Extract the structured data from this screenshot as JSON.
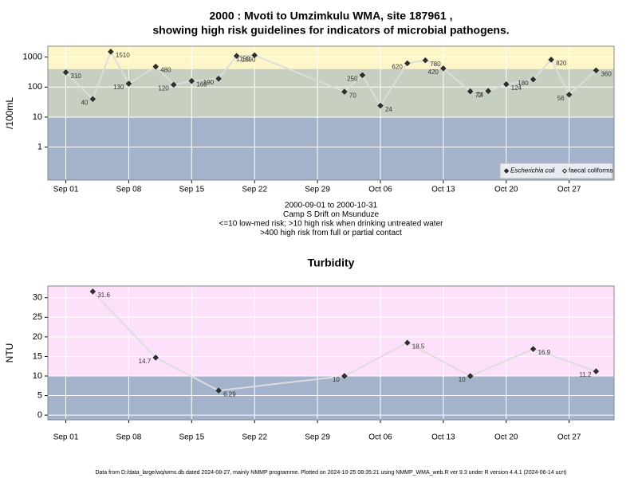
{
  "chart_data": [
    {
      "type": "line",
      "title": "2000 : Mvoti to Umzimkulu WMA, site 187961 ,",
      "subtitle": "showing high risk guidelines for indicators of microbial pathogens.",
      "y_label": "/100mL",
      "caption": [
        "2000-09-01 to 2000-10-31",
        "Camp S Drift on Msunduze",
        "<=10 low-med risk; >10 high risk when drinking untreated water",
        ">400 high risk from full or partial contact"
      ],
      "x": [
        "09-01",
        "09-04",
        "09-06",
        "09-08",
        "09-11",
        "09-13",
        "09-15",
        "09-18",
        "09-20",
        "09-22",
        "10-02",
        "10-04",
        "10-06",
        "10-09",
        "10-11",
        "10-13",
        "10-16",
        "10-18",
        "10-20",
        "10-23",
        "10-25",
        "10-27",
        "10-30"
      ],
      "series": [
        {
          "name": "Escherichia coli",
          "color": "#333333",
          "values": [
            310,
            40,
            1510,
            130,
            480,
            120,
            160,
            190,
            1090,
            1150,
            70,
            250,
            24,
            620,
            780,
            420,
            72,
            74,
            124,
            180,
            820,
            56,
            360
          ]
        },
        {
          "name": "faecal coliforms",
          "color": "#ffffff",
          "values": [
            null,
            null,
            null,
            null,
            null,
            null,
            null,
            null,
            null,
            null,
            null,
            null,
            null,
            null,
            null,
            null,
            null,
            null,
            null,
            null,
            null,
            null,
            null
          ]
        }
      ],
      "xlim": [
        "08-30",
        "11-01"
      ],
      "xticks": [
        {
          "value": "09-01",
          "label": "Sep 01"
        },
        {
          "value": "09-08",
          "label": "Sep 08"
        },
        {
          "value": "09-15",
          "label": "Sep 15"
        },
        {
          "value": "09-22",
          "label": "Sep 22"
        },
        {
          "value": "09-29",
          "label": "Sep 29"
        },
        {
          "value": "10-06",
          "label": "Oct 06"
        },
        {
          "value": "10-13",
          "label": "Oct 13"
        },
        {
          "value": "10-20",
          "label": "Oct 20"
        },
        {
          "value": "10-27",
          "label": "Oct 27"
        }
      ],
      "ylim": [
        0.08,
        2300
      ],
      "yticks": [
        1,
        10,
        100,
        1000
      ],
      "log_y": true,
      "grid": true,
      "thresholds": [
        10,
        400
      ],
      "band_colors": [
        "#a3b3cc",
        "#c6cfc0",
        "#fdf6c9"
      ],
      "line_color": "#dddddd",
      "legend": "bottom-right"
    },
    {
      "type": "line",
      "title": "Turbidity",
      "y_label": "NTU",
      "x": [
        "09-04",
        "09-11",
        "09-18",
        "10-02",
        "10-09",
        "10-16",
        "10-23",
        "10-30"
      ],
      "series": [
        {
          "color": "#333333",
          "values": [
            31.6,
            14.7,
            6.29,
            10,
            18.5,
            10,
            16.9,
            11.2
          ]
        }
      ],
      "xlim": [
        "08-30",
        "11-01"
      ],
      "xticks": [
        {
          "value": "09-01",
          "label": "Sep 01"
        },
        {
          "value": "09-08",
          "label": "Sep 08"
        },
        {
          "value": "09-15",
          "label": "Sep 15"
        },
        {
          "value": "09-22",
          "label": "Sep 22"
        },
        {
          "value": "09-29",
          "label": "Sep 29"
        },
        {
          "value": "10-06",
          "label": "Oct 06"
        },
        {
          "value": "10-13",
          "label": "Oct 13"
        },
        {
          "value": "10-20",
          "label": "Oct 20"
        },
        {
          "value": "10-27",
          "label": "Oct 27"
        }
      ],
      "ylim": [
        -1.2,
        33
      ],
      "yticks": [
        0,
        5,
        10,
        15,
        20,
        25,
        30
      ],
      "log_y": false,
      "grid": true,
      "thresholds": [
        10
      ],
      "band_colors": [
        "#a3b3cc",
        "#fde1fa"
      ],
      "line_color": "#dddddd"
    }
  ],
  "footer": "Data from D:/data_large/wq/wms.db dated 2024-08-27, mainly NMMP programme. Plotted on 2024-10-25 08:35:21 using NMMP_WMA_web.R ver 9.3 under R version 4.4.1 (2024-06-14 ucrt)"
}
